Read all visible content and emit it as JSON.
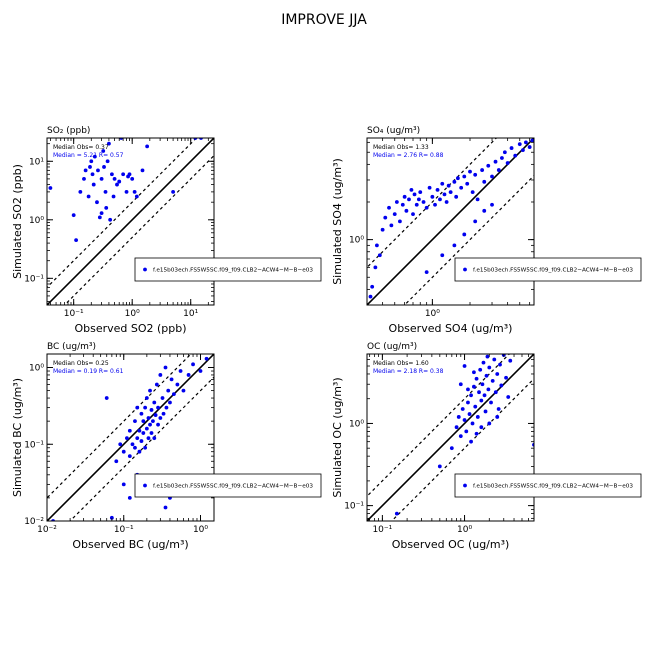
{
  "figure": {
    "title": "IMPROVE JJA"
  },
  "chart_data": [
    {
      "id": "so2",
      "type": "scatter",
      "title": "SO₂ (ppb)",
      "xlabel": "Observed SO2 (ppb)",
      "ylabel": "Simulated SO2 (ppb)",
      "scale": "log",
      "xlim": [
        0.035,
        25
      ],
      "ylim": [
        0.035,
        25
      ],
      "xticks": [
        {
          "v": 0.1,
          "label": "10⁻¹"
        },
        {
          "v": 1,
          "label": "10⁰"
        },
        {
          "v": 10,
          "label": "10¹"
        }
      ],
      "yticks": [
        {
          "v": 0.1,
          "label": "10⁻¹"
        },
        {
          "v": 1,
          "label": "10⁰"
        },
        {
          "v": 10,
          "label": "10¹"
        }
      ],
      "stats": {
        "obs": "Median Obs= 0.37",
        "sim": "Median = 5.21 R= 0.57"
      },
      "legend": {
        "position": "bottom-right",
        "label": "f.e15b03ech.FS5W5SC.f09_f09.CLB2−ACW4−M−B−e03"
      },
      "point_color": "#0000ee",
      "points": [
        [
          0.04,
          3.5
        ],
        [
          0.1,
          1.2
        ],
        [
          0.11,
          0.45
        ],
        [
          0.13,
          3
        ],
        [
          0.15,
          5
        ],
        [
          0.16,
          7
        ],
        [
          0.18,
          2.5
        ],
        [
          0.19,
          8
        ],
        [
          0.2,
          10
        ],
        [
          0.21,
          6
        ],
        [
          0.22,
          4
        ],
        [
          0.23,
          12
        ],
        [
          0.25,
          2
        ],
        [
          0.26,
          7
        ],
        [
          0.28,
          1.1
        ],
        [
          0.3,
          1.3
        ],
        [
          0.3,
          5
        ],
        [
          0.32,
          15
        ],
        [
          0.33,
          8
        ],
        [
          0.35,
          3
        ],
        [
          0.36,
          1.6
        ],
        [
          0.38,
          10
        ],
        [
          0.4,
          20
        ],
        [
          0.42,
          1
        ],
        [
          0.45,
          6
        ],
        [
          0.48,
          2.5
        ],
        [
          0.5,
          5
        ],
        [
          0.55,
          4
        ],
        [
          0.6,
          4.5
        ],
        [
          0.65,
          25
        ],
        [
          0.7,
          6
        ],
        [
          0.8,
          3
        ],
        [
          0.85,
          5.5
        ],
        [
          0.9,
          6
        ],
        [
          1.0,
          5
        ],
        [
          1.1,
          3
        ],
        [
          1.2,
          2.5
        ],
        [
          1.5,
          7
        ],
        [
          1.8,
          18
        ],
        [
          5,
          3
        ],
        [
          12,
          25
        ],
        [
          15,
          25
        ]
      ]
    },
    {
      "id": "so4",
      "type": "scatter",
      "title": "SO₄ (ug/m³)",
      "xlabel": "Observed SO4 (ug/m³)",
      "ylabel": "Simulated SO4 (ug/m³)",
      "scale": "log",
      "xlim": [
        0.3,
        6.5
      ],
      "ylim": [
        0.3,
        6.5
      ],
      "xticks": [
        {
          "v": 1,
          "label": "10⁰"
        }
      ],
      "yticks": [
        {
          "v": 1,
          "label": "10⁰"
        }
      ],
      "stats": {
        "obs": "Median Obs= 1.33",
        "sim": "Median = 2.76 R= 0.88"
      },
      "legend": {
        "position": "bottom-right",
        "label": "f.e15b03ech.FS5W5SC.f09_f09.CLB2−ACW4−M−B−e03"
      },
      "point_color": "#0000ee",
      "points": [
        [
          0.32,
          0.35
        ],
        [
          0.33,
          0.42
        ],
        [
          0.35,
          0.6
        ],
        [
          0.36,
          0.9
        ],
        [
          0.38,
          0.75
        ],
        [
          0.4,
          1.2
        ],
        [
          0.42,
          1.5
        ],
        [
          0.45,
          1.8
        ],
        [
          0.47,
          1.3
        ],
        [
          0.5,
          1.6
        ],
        [
          0.52,
          2
        ],
        [
          0.55,
          1.4
        ],
        [
          0.58,
          1.9
        ],
        [
          0.6,
          2.2
        ],
        [
          0.62,
          1.7
        ],
        [
          0.65,
          2.1
        ],
        [
          0.68,
          2.5
        ],
        [
          0.7,
          1.6
        ],
        [
          0.72,
          2.3
        ],
        [
          0.75,
          1.9
        ],
        [
          0.78,
          2.1
        ],
        [
          0.8,
          2.4
        ],
        [
          0.85,
          2
        ],
        [
          0.9,
          1.8
        ],
        [
          0.95,
          2.6
        ],
        [
          1.0,
          2.2
        ],
        [
          1.05,
          1.9
        ],
        [
          1.1,
          2.5
        ],
        [
          1.15,
          2.1
        ],
        [
          1.2,
          2.8
        ],
        [
          1.25,
          2.3
        ],
        [
          1.3,
          2
        ],
        [
          1.35,
          2.7
        ],
        [
          1.4,
          2.4
        ],
        [
          1.5,
          2.9
        ],
        [
          1.55,
          2.2
        ],
        [
          1.6,
          3.1
        ],
        [
          1.7,
          2.6
        ],
        [
          1.8,
          3.2
        ],
        [
          1.9,
          2.8
        ],
        [
          2.0,
          3.5
        ],
        [
          2.1,
          2.4
        ],
        [
          2.2,
          3.3
        ],
        [
          2.3,
          2.1
        ],
        [
          2.5,
          3.6
        ],
        [
          2.6,
          2.9
        ],
        [
          2.8,
          3.9
        ],
        [
          3.0,
          3.2
        ],
        [
          3.2,
          4.2
        ],
        [
          3.4,
          3.6
        ],
        [
          3.6,
          4.5
        ],
        [
          3.8,
          5
        ],
        [
          4.0,
          4.1
        ],
        [
          4.3,
          5.4
        ],
        [
          4.6,
          4.7
        ],
        [
          5.0,
          5.8
        ],
        [
          5.3,
          5.2
        ],
        [
          5.6,
          6
        ],
        [
          6.0,
          5.5
        ],
        [
          6.3,
          6.2
        ],
        [
          1.5,
          0.9
        ],
        [
          1.8,
          1.1
        ],
        [
          1.2,
          0.75
        ],
        [
          2.2,
          1.4
        ],
        [
          0.9,
          0.55
        ],
        [
          2.6,
          1.7
        ],
        [
          3.0,
          1.9
        ]
      ]
    },
    {
      "id": "bc",
      "type": "scatter",
      "title": "BC (ug/m³)",
      "xlabel": "Observed BC (ug/m³)",
      "ylabel": "Simulated BC (ug/m³)",
      "scale": "log",
      "xlim": [
        0.01,
        1.5
      ],
      "ylim": [
        0.01,
        1.5
      ],
      "xticks": [
        {
          "v": 0.01,
          "label": "10⁻²"
        },
        {
          "v": 0.1,
          "label": "10⁻¹"
        },
        {
          "v": 1,
          "label": "10⁰"
        }
      ],
      "yticks": [
        {
          "v": 0.01,
          "label": "10⁻²"
        },
        {
          "v": 0.1,
          "label": "10⁻¹"
        },
        {
          "v": 1,
          "label": "10⁰"
        }
      ],
      "stats": {
        "obs": "Median Obs= 0.25",
        "sim": "Median = 0.19 R= 0.61"
      },
      "legend": {
        "position": "bottom-right",
        "label": "f.e15b03ech.FS5W5SC.f09_f09.CLB2−ACW4−M−B−e03"
      },
      "point_color": "#0000ee",
      "points": [
        [
          0.012,
          0.01
        ],
        [
          0.06,
          0.4
        ],
        [
          0.07,
          0.011
        ],
        [
          0.08,
          0.06
        ],
        [
          0.09,
          0.1
        ],
        [
          0.1,
          0.03
        ],
        [
          0.1,
          0.08
        ],
        [
          0.11,
          0.12
        ],
        [
          0.12,
          0.07
        ],
        [
          0.12,
          0.15
        ],
        [
          0.13,
          0.1
        ],
        [
          0.14,
          0.09
        ],
        [
          0.14,
          0.2
        ],
        [
          0.15,
          0.12
        ],
        [
          0.15,
          0.3
        ],
        [
          0.16,
          0.08
        ],
        [
          0.16,
          0.15
        ],
        [
          0.17,
          0.11
        ],
        [
          0.17,
          0.25
        ],
        [
          0.18,
          0.14
        ],
        [
          0.18,
          0.2
        ],
        [
          0.19,
          0.09
        ],
        [
          0.19,
          0.3
        ],
        [
          0.2,
          0.16
        ],
        [
          0.2,
          0.4
        ],
        [
          0.21,
          0.12
        ],
        [
          0.21,
          0.22
        ],
        [
          0.22,
          0.18
        ],
        [
          0.22,
          0.5
        ],
        [
          0.23,
          0.14
        ],
        [
          0.23,
          0.28
        ],
        [
          0.24,
          0.2
        ],
        [
          0.25,
          0.35
        ],
        [
          0.25,
          0.12
        ],
        [
          0.26,
          0.24
        ],
        [
          0.27,
          0.6
        ],
        [
          0.28,
          0.18
        ],
        [
          0.28,
          0.3
        ],
        [
          0.3,
          0.22
        ],
        [
          0.3,
          0.8
        ],
        [
          0.32,
          0.4
        ],
        [
          0.33,
          0.25
        ],
        [
          0.35,
          1.0
        ],
        [
          0.36,
          0.3
        ],
        [
          0.38,
          0.5
        ],
        [
          0.4,
          0.35
        ],
        [
          0.42,
          0.7
        ],
        [
          0.45,
          0.45
        ],
        [
          0.5,
          0.6
        ],
        [
          0.55,
          0.9
        ],
        [
          0.6,
          0.5
        ],
        [
          0.7,
          0.8
        ],
        [
          0.8,
          1.1
        ],
        [
          1.0,
          0.9
        ],
        [
          1.2,
          1.3
        ],
        [
          0.3,
          0.025
        ],
        [
          0.35,
          0.015
        ],
        [
          0.4,
          0.02
        ],
        [
          0.12,
          0.02
        ],
        [
          0.15,
          0.04
        ]
      ]
    },
    {
      "id": "oc",
      "type": "scatter",
      "title": "OC (ug/m³)",
      "xlabel": "Observed OC (ug/m³)",
      "ylabel": "Simulated OC (ug/m³)",
      "scale": "log",
      "xlim": [
        0.065,
        7
      ],
      "ylim": [
        0.065,
        7
      ],
      "xticks": [
        {
          "v": 0.1,
          "label": "10⁻¹"
        },
        {
          "v": 1,
          "label": "10⁰"
        }
      ],
      "yticks": [
        {
          "v": 0.1,
          "label": "10⁻¹"
        },
        {
          "v": 1,
          "label": "10⁰"
        }
      ],
      "stats": {
        "obs": "Median Obs= 1.60",
        "sim": "Median = 2.18 R= 0.38"
      },
      "legend": {
        "position": "bottom-right",
        "label": "f.e15b03ech.FS5W5SC.f09_f09.CLB2−ACW4−M−B−e03"
      },
      "point_color": "#0000ee",
      "points": [
        [
          0.15,
          0.08
        ],
        [
          0.5,
          0.3
        ],
        [
          0.7,
          0.5
        ],
        [
          0.8,
          0.9
        ],
        [
          0.85,
          1.2
        ],
        [
          0.9,
          0.7
        ],
        [
          0.95,
          1.5
        ],
        [
          1.0,
          1.1
        ],
        [
          1.05,
          0.8
        ],
        [
          1.1,
          1.8
        ],
        [
          1.15,
          1.3
        ],
        [
          1.2,
          2.2
        ],
        [
          1.25,
          1
        ],
        [
          1.3,
          2.8
        ],
        [
          1.35,
          1.6
        ],
        [
          1.4,
          3.5
        ],
        [
          1.45,
          1.2
        ],
        [
          1.5,
          2.4
        ],
        [
          1.55,
          4.5
        ],
        [
          1.6,
          1.9
        ],
        [
          1.65,
          3
        ],
        [
          1.7,
          5.5
        ],
        [
          1.75,
          2.2
        ],
        [
          1.8,
          1.4
        ],
        [
          1.85,
          3.8
        ],
        [
          1.9,
          6.5
        ],
        [
          1.95,
          2.6
        ],
        [
          2.0,
          4.8
        ],
        [
          2.1,
          1.8
        ],
        [
          2.2,
          3.3
        ],
        [
          2.3,
          6
        ],
        [
          2.4,
          2.4
        ],
        [
          2.5,
          4
        ],
        [
          2.6,
          1.5
        ],
        [
          2.7,
          5.2
        ],
        [
          2.8,
          2.9
        ],
        [
          3.0,
          6.8
        ],
        [
          3.2,
          3.6
        ],
        [
          3.4,
          2.1
        ],
        [
          3.6,
          5.8
        ],
        [
          1.2,
          0.6
        ],
        [
          1.4,
          0.75
        ],
        [
          1.6,
          0.9
        ],
        [
          2.0,
          1.0
        ],
        [
          2.5,
          1.2
        ],
        [
          7,
          0.55
        ],
        [
          1.1,
          2.6
        ],
        [
          1.3,
          4.2
        ],
        [
          0.9,
          3.0
        ],
        [
          1.0,
          5.0
        ]
      ]
    }
  ]
}
